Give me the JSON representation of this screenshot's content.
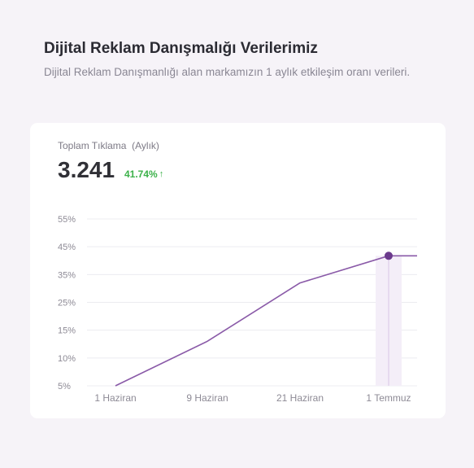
{
  "header": {
    "title": "Dijital Reklam Danışmalığı Verilerimiz",
    "subtitle": "Dijital Reklam Danışmanlığı alan markamızın 1 aylık etkileşim oranı verileri."
  },
  "card": {
    "metric_label": "Toplam Tıklama  (Aylık)",
    "metric_value": "3.241",
    "metric_change": "41.74%",
    "change_icon": "arrow-up-icon",
    "change_color": "#3cb14a"
  },
  "chart_data": {
    "type": "line",
    "categories": [
      "1 Haziran",
      "9 Haziran",
      "21 Haziran",
      "1 Temmuz"
    ],
    "y_ticks": [
      "5%",
      "10%",
      "15%",
      "25%",
      "35%",
      "45%",
      "55%"
    ],
    "series": [
      {
        "values": [
          5,
          13,
          32,
          41.74
        ]
      }
    ],
    "highlight_index": 3,
    "ylim": [
      5,
      55
    ],
    "grid": true,
    "line_color": "#8a5aa8",
    "marker_color": "#6b3a8c"
  }
}
